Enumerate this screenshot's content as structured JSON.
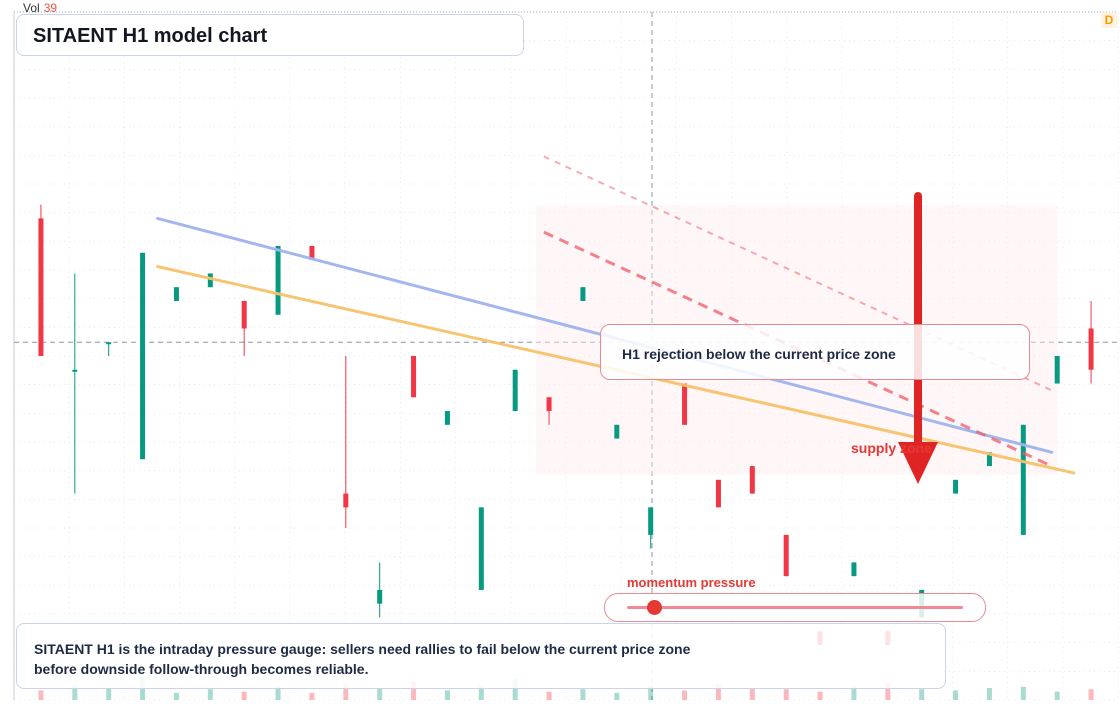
{
  "header": {
    "title": "SITAENT H1 model chart",
    "badge": "D"
  },
  "volume": {
    "label": "Vol",
    "value": "39"
  },
  "annotations": {
    "callout": "H1 rejection below the current price zone",
    "zone_label": "supply zone",
    "gauge_label": "momentum pressure",
    "note": "SITAENT H1 is the intraday pressure gauge: sellers need rallies to fail below the current price zone before downside follow-through becomes reliable."
  },
  "gauge": {
    "value": 0.08
  },
  "colors": {
    "up": "#089981",
    "down": "#f23645",
    "ma_fast": "#f7c26b",
    "ma_slow": "#9fb4ee",
    "arrow": "#e02424"
  },
  "chart_data": {
    "type": "candlestick",
    "timeframe": "H1",
    "bars": [
      {
        "o": 0.3,
        "c": 0.5,
        "h": 0.28,
        "l": 0.5,
        "v": 0.08
      },
      {
        "o": 0.52,
        "c": 0.52,
        "h": 0.38,
        "l": 0.7,
        "v": 0.12
      },
      {
        "o": 0.48,
        "c": 0.48,
        "h": 0.72,
        "l": 0.5,
        "v": 0.1
      },
      {
        "o": 0.65,
        "c": 0.35,
        "h": 0.8,
        "l": 0.3,
        "v": 0.2
      },
      {
        "o": 0.42,
        "c": 0.4,
        "h": 0.45,
        "l": 0.35,
        "v": 0.06
      },
      {
        "o": 0.4,
        "c": 0.38,
        "h": 0.66,
        "l": 0.22,
        "v": 0.09
      },
      {
        "o": 0.42,
        "c": 0.46,
        "h": 0.44,
        "l": 0.5,
        "v": 0.07
      },
      {
        "o": 0.44,
        "c": 0.34,
        "h": 0.48,
        "l": 0.3,
        "v": 0.11
      },
      {
        "o": 0.34,
        "c": 0.36,
        "h": 0.38,
        "l": 0.32,
        "v": 0.06
      },
      {
        "o": 0.7,
        "c": 0.72,
        "h": 0.5,
        "l": 0.75,
        "v": 0.14
      },
      {
        "o": 0.86,
        "c": 0.84,
        "h": 0.8,
        "l": 0.88,
        "v": 0.1
      },
      {
        "o": 0.5,
        "c": 0.56,
        "h": 0.58,
        "l": 0.48,
        "v": 0.16
      },
      {
        "o": 0.6,
        "c": 0.58,
        "h": 0.64,
        "l": 0.6,
        "v": 0.08
      },
      {
        "o": 0.84,
        "c": 0.72,
        "h": 0.9,
        "l": 0.62,
        "v": 0.12
      },
      {
        "o": 0.58,
        "c": 0.52,
        "h": 0.6,
        "l": 0.52,
        "v": 0.18
      },
      {
        "o": 0.56,
        "c": 0.58,
        "h": 0.62,
        "l": 0.6,
        "v": 0.07
      },
      {
        "o": 0.42,
        "c": 0.4,
        "h": 0.48,
        "l": 0.34,
        "v": 0.09
      },
      {
        "o": 0.62,
        "c": 0.6,
        "h": 0.66,
        "l": 0.58,
        "v": 0.06
      },
      {
        "o": 0.76,
        "c": 0.72,
        "h": 0.72,
        "l": 0.78,
        "v": 0.11
      },
      {
        "o": 0.54,
        "c": 0.6,
        "h": 0.54,
        "l": 0.56,
        "v": 0.08
      },
      {
        "o": 0.68,
        "c": 0.72,
        "h": 0.72,
        "l": 0.52,
        "v": 0.13
      },
      {
        "o": 0.66,
        "c": 0.7,
        "h": 0.78,
        "l": 0.64,
        "v": 0.1
      },
      {
        "o": 0.76,
        "c": 0.82,
        "h": 0.86,
        "l": 0.78,
        "v": 0.09
      },
      {
        "o": 0.9,
        "c": 0.92,
        "h": 0.9,
        "l": 0.86,
        "v": 0.07
      },
      {
        "o": 0.82,
        "c": 0.8,
        "h": 0.84,
        "l": 0.78,
        "v": 0.12
      },
      {
        "o": 0.9,
        "c": 0.92,
        "h": 0.94,
        "l": 0.82,
        "v": 0.15
      },
      {
        "o": 0.88,
        "c": 0.84,
        "h": 0.9,
        "l": 0.78,
        "v": 0.09
      },
      {
        "o": 0.7,
        "c": 0.68,
        "h": 0.68,
        "l": 0.62,
        "v": 0.08
      },
      {
        "o": 0.66,
        "c": 0.64,
        "h": 0.7,
        "l": 0.6,
        "v": 0.1
      },
      {
        "o": 0.76,
        "c": 0.6,
        "h": 0.8,
        "l": 0.64,
        "v": 0.11
      },
      {
        "o": 0.54,
        "c": 0.5,
        "h": 0.52,
        "l": 0.48,
        "v": 0.07
      },
      {
        "o": 0.46,
        "c": 0.52,
        "h": 0.42,
        "l": 0.54,
        "v": 0.09
      }
    ],
    "moving_averages": [
      {
        "points": [
          [
            0.13,
            0.3
          ],
          [
            0.94,
            0.64
          ]
        ]
      },
      {
        "points": [
          [
            0.13,
            0.37
          ],
          [
            0.96,
            0.67
          ]
        ]
      }
    ],
    "trendlines": [
      {
        "style": "dashed",
        "points": [
          [
            0.48,
            0.21
          ],
          [
            0.94,
            0.55
          ]
        ]
      },
      {
        "style": "dashed",
        "points": [
          [
            0.48,
            0.32
          ],
          [
            0.94,
            0.66
          ]
        ]
      }
    ],
    "current_price_level": 0.48,
    "grid": true,
    "signal": "sell"
  }
}
